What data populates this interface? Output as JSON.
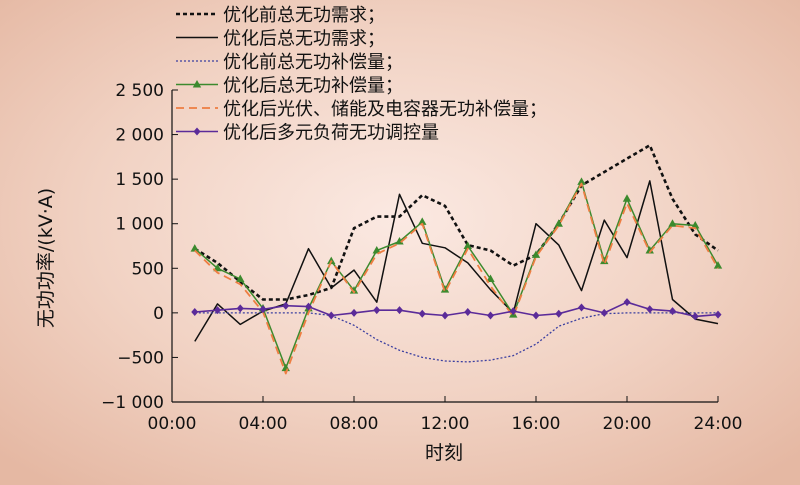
{
  "chart_data": {
    "type": "line",
    "title": "",
    "xlabel": "时刻",
    "ylabel": "无功功率/(kV·A)",
    "xlim": [
      0,
      24
    ],
    "ylim": [
      -1000,
      2500
    ],
    "xticks": [
      0,
      4,
      8,
      12,
      16,
      20,
      24
    ],
    "xtick_labels": [
      "00:00",
      "04:00",
      "08:00",
      "12:00",
      "16:00",
      "20:00",
      "24:00"
    ],
    "yticks": [
      -1000,
      -500,
      0,
      500,
      1000,
      1500,
      2000,
      2500
    ],
    "ytick_labels": [
      "−1 000",
      "−500",
      "0",
      "500",
      "1 000",
      "1 500",
      "2 000",
      "2 500"
    ],
    "grid": false,
    "legend_position": "top-left",
    "x": [
      1,
      2,
      3,
      4,
      5,
      6,
      7,
      8,
      9,
      10,
      11,
      12,
      13,
      14,
      15,
      16,
      17,
      18,
      19,
      20,
      21,
      22,
      23,
      24
    ],
    "series": [
      {
        "name": "优化前总无功需求；",
        "color": "#111111",
        "dash": "4,3",
        "width": 2.6,
        "marker": "none",
        "values": [
          720,
          560,
          350,
          150,
          150,
          200,
          280,
          950,
          1080,
          1080,
          1320,
          1200,
          760,
          700,
          530,
          650,
          1000,
          1430,
          1580,
          1730,
          1880,
          1280,
          880,
          700
        ]
      },
      {
        "name": "优化后总无功需求；",
        "color": "#111111",
        "dash": "",
        "width": 1.5,
        "marker": "none",
        "values": [
          -320,
          100,
          -130,
          20,
          100,
          720,
          280,
          480,
          120,
          1330,
          780,
          730,
          560,
          260,
          0,
          1000,
          760,
          250,
          1040,
          620,
          1480,
          150,
          -70,
          -120
        ]
      },
      {
        "name": "优化前总无功补偿量；",
        "color": "#3b3fa0",
        "dash": "2,2",
        "width": 1.3,
        "marker": "none",
        "values": [
          0,
          0,
          0,
          0,
          0,
          0,
          -30,
          -140,
          -300,
          -420,
          -500,
          -540,
          -550,
          -530,
          -480,
          -350,
          -150,
          -60,
          -10,
          0,
          0,
          0,
          0,
          0
        ]
      },
      {
        "name": "优化后总无功补偿量；",
        "color": "#3c8a2e",
        "dash": "",
        "width": 1.5,
        "marker": "triangle",
        "values": [
          720,
          500,
          380,
          50,
          -620,
          50,
          580,
          250,
          700,
          800,
          1020,
          260,
          750,
          380,
          -20,
          650,
          1000,
          1470,
          580,
          1280,
          700,
          1000,
          980,
          530
        ]
      },
      {
        "name": "优化后光伏、储能及电容器无功补偿量；",
        "color": "#ee7e42",
        "dash": "8,5",
        "width": 1.8,
        "marker": "none",
        "values": [
          700,
          450,
          320,
          10,
          -680,
          0,
          580,
          230,
          660,
          780,
          1000,
          230,
          720,
          300,
          -40,
          630,
          980,
          1450,
          540,
          1230,
          680,
          980,
          950,
          500
        ]
      },
      {
        "name": "优化后多元负荷无功调控量",
        "color": "#5b2b99",
        "dash": "",
        "width": 1.6,
        "marker": "diamond",
        "values": [
          10,
          30,
          50,
          40,
          80,
          70,
          -30,
          0,
          30,
          30,
          -10,
          -30,
          10,
          -30,
          20,
          -30,
          -10,
          60,
          0,
          120,
          40,
          20,
          -40,
          -20
        ]
      }
    ]
  }
}
